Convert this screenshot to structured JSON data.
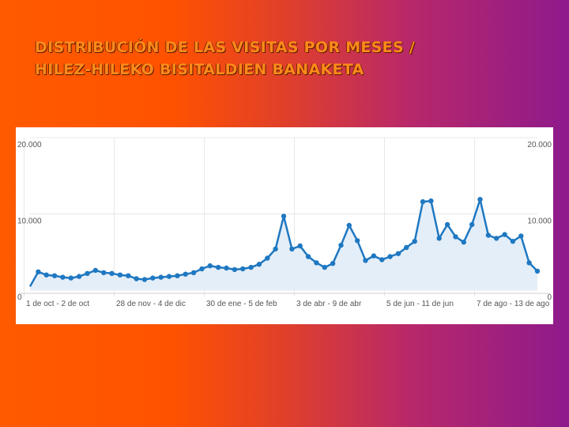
{
  "slide": {
    "title_line1": "DISTRIBUCIÓN DE LAS VISITAS POR MESES /",
    "title_line2": "HILEZ-HILEKO BISITALDIEN BANAKETA"
  },
  "colors": {
    "series": "#1f78c1",
    "fill": "#e4eef8",
    "grid": "#e8e8e8"
  },
  "chart_data": {
    "type": "area",
    "title": "",
    "xlabel": "",
    "ylabel": "",
    "ylim": [
      0,
      20000
    ],
    "grid": true,
    "y_ticks_left": [
      "20.000",
      "10.000",
      "0"
    ],
    "y_ticks_right": [
      "20.000",
      "10.000",
      "0"
    ],
    "x_tick_labels": [
      "1 de oct - 2 de oct",
      "28 de nov - 4 de dic",
      "30 de ene - 5 de feb",
      "3 de abr - 9 de abr",
      "5 de jun - 11 de jun",
      "7 de ago - 13 de ago"
    ],
    "series": [
      {
        "values": [
          500,
          2400,
          2000,
          1900,
          1700,
          1600,
          1800,
          2200,
          2600,
          2300,
          2200,
          2000,
          1900,
          1500,
          1400,
          1600,
          1700,
          1800,
          1900,
          2100,
          2300,
          2800,
          3200,
          3000,
          2900,
          2700,
          2800,
          3000,
          3400,
          4200,
          5400,
          9700,
          5400,
          5800,
          4400,
          3600,
          3000,
          3500,
          5900,
          8500,
          6500,
          3900,
          4500,
          4000,
          4400,
          4800,
          5600,
          6400,
          11600,
          11700,
          6800,
          8600,
          7000,
          6300,
          8600,
          11900,
          7200,
          6800,
          7300,
          6400,
          7100,
          3600,
          2500
        ]
      }
    ]
  }
}
